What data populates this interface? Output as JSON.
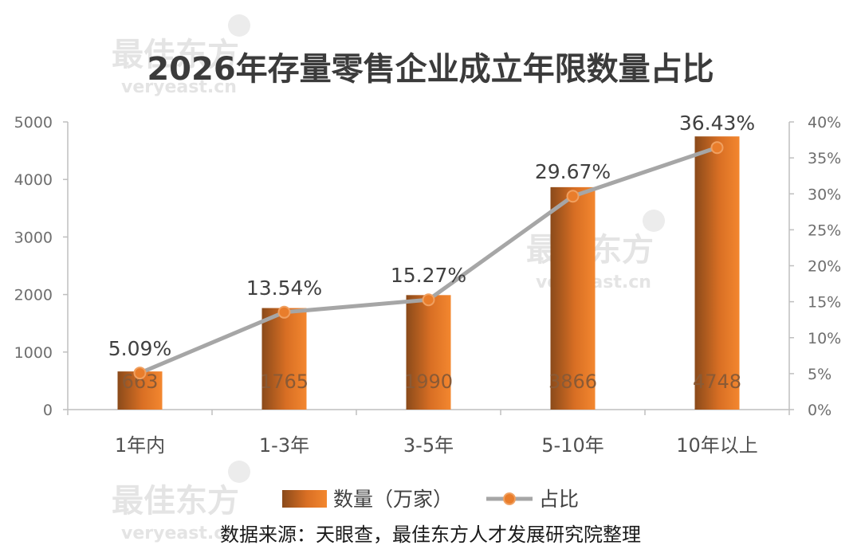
{
  "chart_data": {
    "type": "bar",
    "title": "2026年存量零售企业成立年限数量占比",
    "categories": [
      "1年内",
      "1-3年",
      "3-5年",
      "5-10年",
      "10年以上"
    ],
    "series": [
      {
        "name": "数量（万家）",
        "type": "bar",
        "axis": "left",
        "values": [
          663,
          1765,
          1990,
          3866,
          4748
        ],
        "labels": [
          "663",
          "1765",
          "1990",
          "3866",
          "4748"
        ],
        "color": "#e97d2b"
      },
      {
        "name": "占比",
        "type": "line",
        "axis": "right",
        "values": [
          5.09,
          13.54,
          15.27,
          29.67,
          36.43
        ],
        "labels": [
          "5.09%",
          "13.54%",
          "15.27%",
          "29.67%",
          "36.43%"
        ],
        "color": "#a6a6a6",
        "marker_color": "#e97d2b"
      }
    ],
    "ylim": [
      0,
      5000
    ],
    "y_ticks": [
      "0",
      "1000",
      "2000",
      "3000",
      "4000",
      "5000"
    ],
    "y2lim": [
      0,
      40
    ],
    "y2_ticks": [
      "0%",
      "5%",
      "10%",
      "15%",
      "20%",
      "25%",
      "30%",
      "35%",
      "40%"
    ],
    "legend_placement": "bottom",
    "grid": false
  },
  "source_note": "数据来源：天眼查，最佳东方人才发展研究院整理",
  "watermark": {
    "cn": "最佳东方",
    "en": "veryeast.cn"
  }
}
